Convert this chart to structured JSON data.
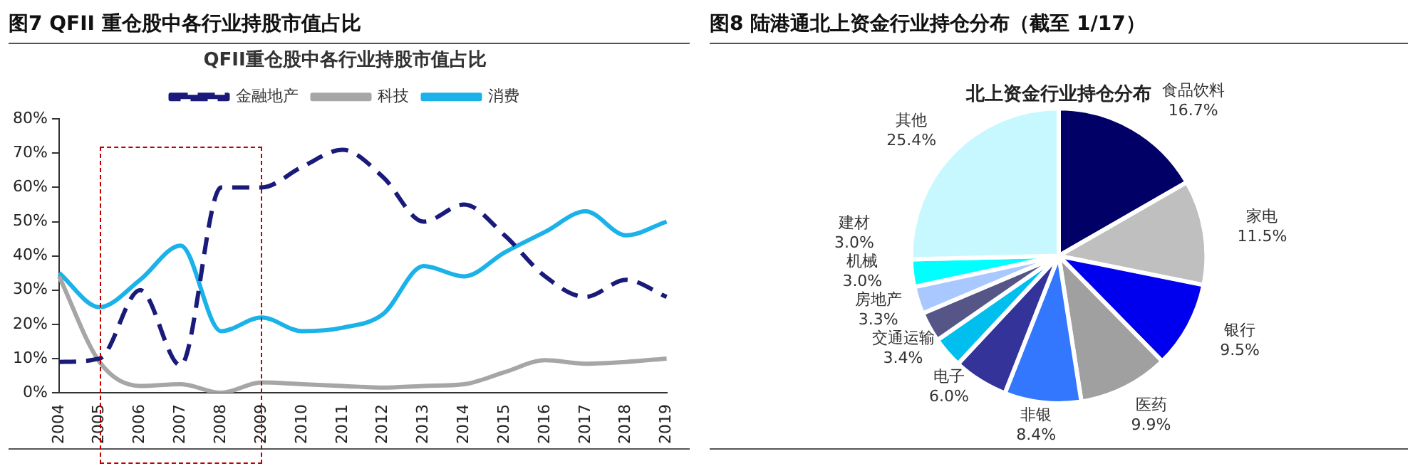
{
  "chart_data": [
    {
      "type": "line",
      "title": "图7  QFII 重仓股中各行业持股市值占比",
      "subtitle": "QFII重仓股中各行业持股市值占比",
      "categories": [
        "2004",
        "2005",
        "2006",
        "2007",
        "2008",
        "2009",
        "2010",
        "2011",
        "2012",
        "2013",
        "2014",
        "2015",
        "2016",
        "2017",
        "2018",
        "2019"
      ],
      "ylim": [
        0,
        80
      ],
      "yticks": [
        {
          "value": 0,
          "label": "0%"
        },
        {
          "value": 10,
          "label": "10%"
        },
        {
          "value": 20,
          "label": "20%"
        },
        {
          "value": 30,
          "label": "30%"
        },
        {
          "value": 40,
          "label": "40%"
        },
        {
          "value": 50,
          "label": "50%"
        },
        {
          "value": 60,
          "label": "60%"
        },
        {
          "value": 70,
          "label": "70%"
        },
        {
          "value": 80,
          "label": "80%"
        }
      ],
      "legend": "top",
      "series": [
        {
          "name": "金融地产",
          "color": "#1a1a7a",
          "line_style": "dashed",
          "values": [
            9,
            10,
            30,
            8,
            60,
            60,
            66,
            71,
            63,
            50,
            55,
            46,
            34,
            28,
            33,
            28
          ]
        },
        {
          "name": "科技",
          "color": "#a6a6a6",
          "values": [
            34,
            9,
            2,
            2.5,
            0,
            3,
            2.5,
            2,
            1.5,
            2,
            2.5,
            6,
            9.5,
            8.5,
            9,
            10
          ]
        },
        {
          "name": "消费",
          "color": "#1ab2e8",
          "values": [
            35,
            25,
            33,
            43,
            18,
            22,
            18,
            19,
            23,
            37,
            34,
            41,
            47,
            53,
            46,
            50
          ]
        }
      ]
    },
    {
      "type": "pie",
      "title": "图8  陆港通北上资金行业持仓分布（截至 1/17）",
      "subtitle": "北上资金行业持仓分布",
      "categories": [
        "食品饮料",
        "家电",
        "银行",
        "医药",
        "非银",
        "电子",
        "交通运输",
        "房地产",
        "机械",
        "建材",
        "其他"
      ],
      "values": [
        16.7,
        11.5,
        9.5,
        9.9,
        8.4,
        6.0,
        3.4,
        3.3,
        3.0,
        3.0,
        25.4
      ],
      "value_labels": [
        "16.7%",
        "11.5%",
        "9.5%",
        "9.9%",
        "8.4%",
        "6.0%",
        "3.4%",
        "3.3%",
        "3.0%",
        "3.0%",
        "25.4%"
      ],
      "colors": [
        "#000066",
        "#bfbfbf",
        "#0000ee",
        "#a0a0a0",
        "#3377ff",
        "#333399",
        "#00bfee",
        "#555588",
        "#a8c8ff",
        "#00ffff",
        "#c8f8ff"
      ]
    }
  ]
}
